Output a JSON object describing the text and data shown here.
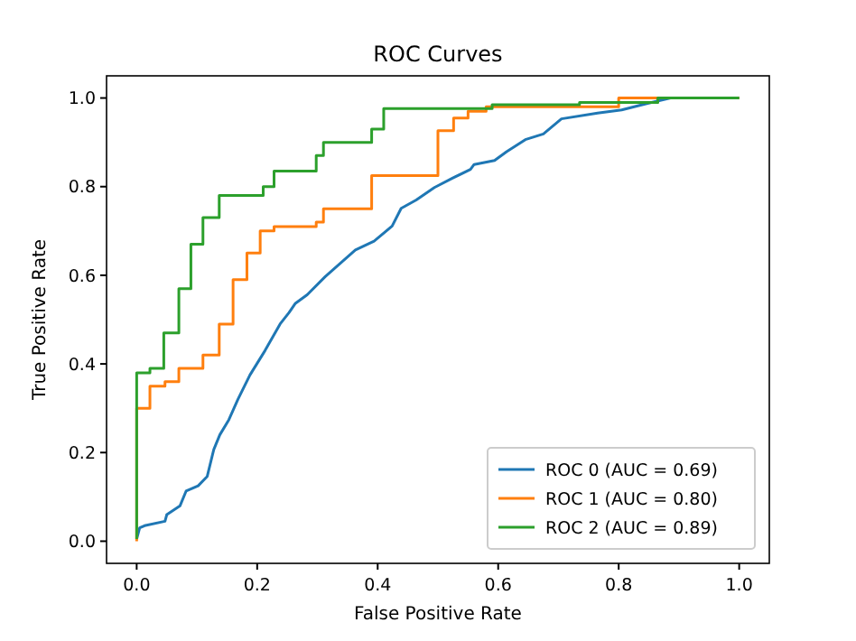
{
  "chart_data": {
    "type": "line",
    "title": "ROC Curves",
    "xlabel": "False Positive Rate",
    "ylabel": "True Positive Rate",
    "xlim": [
      -0.05,
      1.05
    ],
    "ylim": [
      -0.05,
      1.05
    ],
    "xticks": [
      {
        "value": 0,
        "label": "0.0"
      },
      0.2,
      0.4,
      0.6,
      0.8,
      {
        "value": 1,
        "label": "1.0"
      }
    ],
    "yticks": [
      {
        "value": 0,
        "label": "0.0"
      },
      0.2,
      0.4,
      0.6,
      0.8,
      {
        "value": 1,
        "label": "1.0"
      }
    ],
    "legend": "bottom right",
    "grid": false,
    "marker": "none",
    "line_style": "solid",
    "series": [
      {
        "name": "ROC 0 (AUC = 0.69)",
        "color": "#1f77b4",
        "x": [
          0,
          0.005,
          0.013,
          0.047,
          0.05,
          0.072,
          0.082,
          0.102,
          0.117,
          0.128,
          0.138,
          0.153,
          0.168,
          0.188,
          0.213,
          0.238,
          0.253,
          0.263,
          0.283,
          0.313,
          0.363,
          0.394,
          0.424,
          0.439,
          0.464,
          0.494,
          0.524,
          0.554,
          0.56,
          0.594,
          0.614,
          0.645,
          0.675,
          0.705,
          0.765,
          0.805,
          0.845,
          0.886,
          1.0
        ],
        "values": [
          0.005,
          0.03,
          0.035,
          0.045,
          0.06,
          0.08,
          0.113,
          0.125,
          0.146,
          0.207,
          0.24,
          0.274,
          0.32,
          0.375,
          0.43,
          0.49,
          0.516,
          0.536,
          0.556,
          0.597,
          0.657,
          0.677,
          0.711,
          0.751,
          0.77,
          0.798,
          0.819,
          0.839,
          0.85,
          0.859,
          0.879,
          0.906,
          0.919,
          0.953,
          0.966,
          0.973,
          0.987,
          1.0,
          1.0
        ]
      },
      {
        "name": "ROC 1 (AUC = 0.80)",
        "color": "#ff7f0e",
        "x": [
          0,
          0,
          0.022,
          0.022,
          0.047,
          0.047,
          0.07,
          0.07,
          0.11,
          0.11,
          0.137,
          0.137,
          0.16,
          0.16,
          0.183,
          0.183,
          0.205,
          0.205,
          0.228,
          0.228,
          0.298,
          0.298,
          0.31,
          0.31,
          0.39,
          0.39,
          0.5,
          0.5,
          0.526,
          0.526,
          0.55,
          0.55,
          0.58,
          0.58,
          0.8,
          0.8,
          1.0
        ],
        "values": [
          0,
          0.3,
          0.3,
          0.35,
          0.35,
          0.36,
          0.36,
          0.39,
          0.39,
          0.42,
          0.42,
          0.49,
          0.49,
          0.59,
          0.59,
          0.65,
          0.65,
          0.7,
          0.7,
          0.71,
          0.71,
          0.72,
          0.72,
          0.75,
          0.75,
          0.825,
          0.825,
          0.926,
          0.926,
          0.955,
          0.955,
          0.97,
          0.97,
          0.98,
          0.98,
          1.0,
          1.0
        ]
      },
      {
        "name": "ROC 2 (AUC = 0.89)",
        "color": "#2ca02c",
        "x": [
          0,
          0,
          0.022,
          0.022,
          0.045,
          0.045,
          0.07,
          0.07,
          0.09,
          0.09,
          0.11,
          0.11,
          0.137,
          0.137,
          0.21,
          0.21,
          0.228,
          0.228,
          0.298,
          0.298,
          0.31,
          0.31,
          0.39,
          0.39,
          0.41,
          0.41,
          0.59,
          0.59,
          0.735,
          0.735,
          0.865,
          0.865,
          1.0
        ],
        "values": [
          0.005,
          0.38,
          0.38,
          0.39,
          0.39,
          0.47,
          0.47,
          0.57,
          0.57,
          0.67,
          0.67,
          0.73,
          0.73,
          0.78,
          0.78,
          0.8,
          0.8,
          0.835,
          0.835,
          0.87,
          0.87,
          0.9,
          0.9,
          0.93,
          0.93,
          0.976,
          0.976,
          0.985,
          0.985,
          0.99,
          0.99,
          1.0,
          1.0
        ]
      }
    ]
  }
}
